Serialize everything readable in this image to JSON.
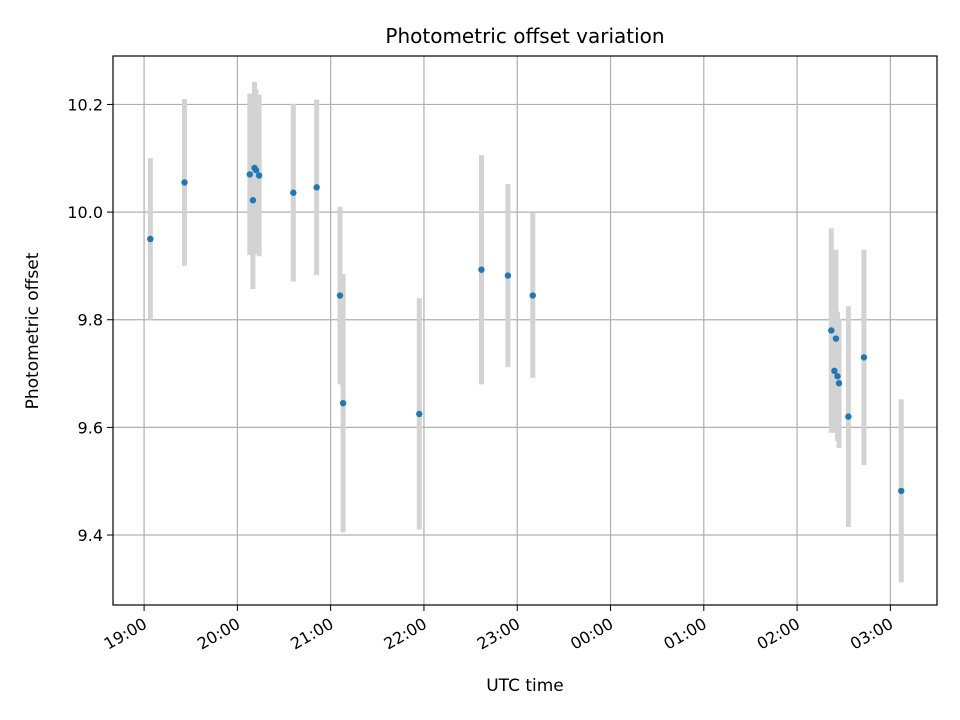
{
  "chart_data": {
    "type": "scatter",
    "title": "Photometric offset variation",
    "xlabel": "UTC time",
    "ylabel": "Photometric offset",
    "x_tick_labels": [
      "19:00",
      "20:00",
      "21:00",
      "22:00",
      "23:00",
      "00:00",
      "01:00",
      "02:00",
      "03:00"
    ],
    "y_tick_labels": [
      "9.4",
      "9.6",
      "9.8",
      "10.0",
      "10.2"
    ],
    "y_ticks": [
      9.4,
      9.6,
      9.8,
      10.0,
      10.2
    ],
    "ylim": [
      9.27,
      10.29
    ],
    "xlim": [
      "18:40",
      "03:30"
    ],
    "grid": true,
    "colors": {
      "point": "#1f77b4",
      "errorbar": "#d3d3d3",
      "grid": "#b0b0b0"
    },
    "series": [
      {
        "points": [
          {
            "x": "19:04",
            "y": 9.95,
            "err": 0.15
          },
          {
            "x": "19:26",
            "y": 10.055,
            "err": 0.155
          },
          {
            "x": "20:08",
            "y": 10.07,
            "err": 0.15
          },
          {
            "x": "20:10",
            "y": 10.022,
            "err": 0.165
          },
          {
            "x": "20:11",
            "y": 10.082,
            "err": 0.16
          },
          {
            "x": "20:12",
            "y": 10.078,
            "err": 0.15
          },
          {
            "x": "20:14",
            "y": 10.068,
            "err": 0.15
          },
          {
            "x": "20:36",
            "y": 10.036,
            "err": 0.165
          },
          {
            "x": "20:51",
            "y": 10.046,
            "err": 0.163
          },
          {
            "x": "21:06",
            "y": 9.845,
            "err": 0.165
          },
          {
            "x": "21:08",
            "y": 9.645,
            "err": 0.24
          },
          {
            "x": "21:57",
            "y": 9.625,
            "err": 0.215
          },
          {
            "x": "22:37",
            "y": 9.893,
            "err": 0.213
          },
          {
            "x": "22:54",
            "y": 9.882,
            "err": 0.17
          },
          {
            "x": "23:10",
            "y": 9.845,
            "err": 0.153
          },
          {
            "x": "02:22",
            "y": 9.78,
            "err": 0.19
          },
          {
            "x": "02:24",
            "y": 9.705,
            "err": 0.115
          },
          {
            "x": "02:25",
            "y": 9.765,
            "err": 0.165
          },
          {
            "x": "02:26",
            "y": 9.695,
            "err": 0.12
          },
          {
            "x": "02:27",
            "y": 9.682,
            "err": 0.12
          },
          {
            "x": "02:33",
            "y": 9.62,
            "err": 0.205
          },
          {
            "x": "02:43",
            "y": 9.73,
            "err": 0.2
          },
          {
            "x": "03:07",
            "y": 9.482,
            "err": 0.17
          }
        ]
      }
    ]
  }
}
